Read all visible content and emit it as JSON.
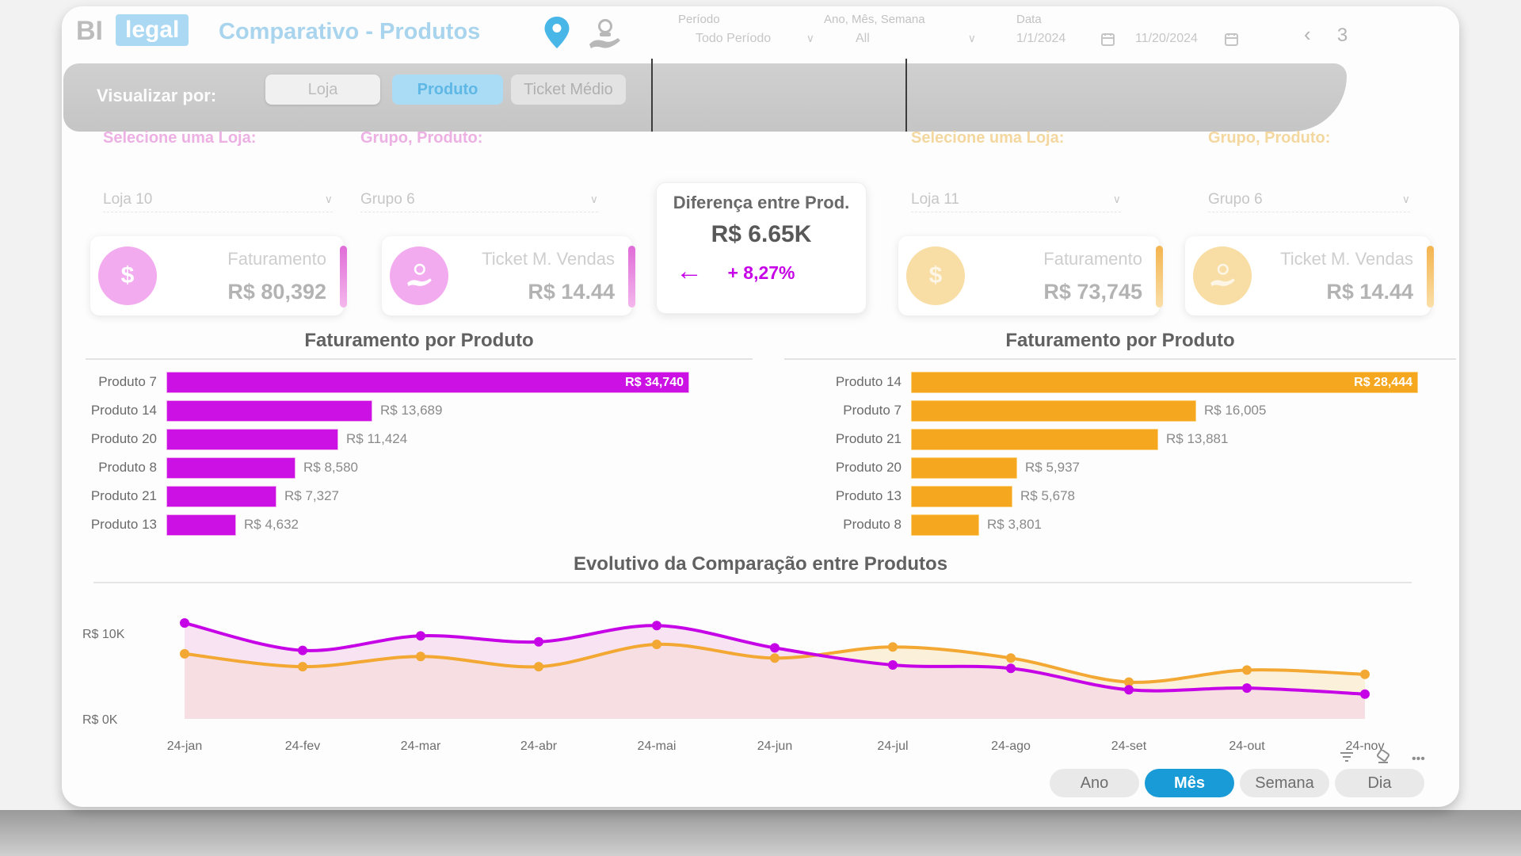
{
  "header": {
    "logo_bi": "BI",
    "logo_legal": "legal",
    "title": "Comparativo - Produtos",
    "filters": {
      "periodo": {
        "label": "Período",
        "value": "Todo Período"
      },
      "ano_mes_semana": {
        "label": "Ano, Mês, Semana",
        "value": "All"
      },
      "data": {
        "label": "Data",
        "start": "1/1/2024",
        "end": "11/20/2024"
      }
    },
    "pagination": {
      "prev": "‹",
      "page": "3"
    }
  },
  "toolbar": {
    "label": "Visualizar por:",
    "buttons": [
      {
        "label": "Loja",
        "active": false
      },
      {
        "label": "Produto",
        "active": true
      },
      {
        "label": "Ticket Médio",
        "active": false
      }
    ]
  },
  "left_panel": {
    "store_label": "Selecione uma Loja:",
    "store_value": "Loja 10",
    "group_label": "Grupo, Produto:",
    "group_value": "Grupo 6",
    "kpi_faturamento": {
      "label": "Faturamento",
      "value": "R$ 80,392"
    },
    "kpi_ticket": {
      "label": "Ticket M. Vendas",
      "value": "R$ 14.44"
    }
  },
  "right_panel": {
    "store_label": "Selecione uma Loja:",
    "store_value": "Loja 11",
    "group_label": "Grupo, Produto:",
    "group_value": "Grupo 6",
    "kpi_faturamento": {
      "label": "Faturamento",
      "value": "R$ 73,745"
    },
    "kpi_ticket": {
      "label": "Ticket M. Vendas",
      "value": "R$ 14.44"
    }
  },
  "diff_card": {
    "title": "Diferença entre Prod.",
    "value": "R$ 6.65K",
    "arrow": "←",
    "percent": "+ 8,27%"
  },
  "chart_data": [
    {
      "type": "bar",
      "orientation": "horizontal",
      "title": "Faturamento por Produto",
      "bar_color": "#cb11e3",
      "bar_border": "#f0a6ec",
      "categories": [
        "Produto 7",
        "Produto 14",
        "Produto 20",
        "Produto 8",
        "Produto 21",
        "Produto 13"
      ],
      "values": [
        34740,
        13689,
        11424,
        8580,
        7327,
        4632
      ],
      "value_labels": [
        "R$ 34,740",
        "R$ 13,689",
        "R$ 11,424",
        "R$ 8,580",
        "R$ 7,327",
        "R$ 4,632"
      ],
      "label_inside": [
        true,
        false,
        false,
        false,
        false,
        false
      ]
    },
    {
      "type": "bar",
      "orientation": "horizontal",
      "title": "Faturamento por Produto",
      "bar_color": "#f5a71f",
      "bar_border": "#fbd07c",
      "categories": [
        "Produto 14",
        "Produto 7",
        "Produto 21",
        "Produto 20",
        "Produto 13",
        "Produto 8"
      ],
      "values": [
        28444,
        16005,
        13881,
        5937,
        5678,
        3801
      ],
      "value_labels": [
        "R$ 28,444",
        "R$ 16,005",
        "R$ 13,881",
        "R$ 5,937",
        "R$ 5,678",
        "R$ 3,801"
      ],
      "label_inside": [
        true,
        false,
        false,
        false,
        false,
        false
      ]
    },
    {
      "type": "line",
      "title": "Evolutivo da Comparação entre Produtos",
      "x": [
        "24-jan",
        "24-fev",
        "24-mar",
        "24-abr",
        "24-mai",
        "24-jun",
        "24-jul",
        "24-ago",
        "24-set",
        "24-out",
        "24-nov"
      ],
      "y_axis": {
        "ticks": [
          {
            "label": "R$ 10K",
            "k": 10
          },
          {
            "label": "R$ 0K",
            "k": 0
          }
        ],
        "max_k": 12.5
      },
      "series": [
        {
          "color_name": "orange",
          "color": "#f2a832",
          "fill": "rgba(250,233,200,0.65)",
          "values_k": [
            7.6,
            6.1,
            7.3,
            6.1,
            8.7,
            7.1,
            8.4,
            7.1,
            4.3,
            5.7,
            5.2
          ]
        },
        {
          "color_name": "magenta",
          "color": "#c603e6",
          "fill": "rgba(244,210,234,0.6)",
          "values_k": [
            11.2,
            8.0,
            9.7,
            9.0,
            10.9,
            8.3,
            6.3,
            5.9,
            3.4,
            3.6,
            2.9
          ]
        }
      ],
      "grid": false,
      "legend": "none"
    }
  ],
  "footer": {
    "icons": {
      "filter": "filter",
      "eraser": "eraser",
      "more": "•••"
    },
    "period_buttons": [
      {
        "label": "Ano",
        "active": false
      },
      {
        "label": "Mês",
        "active": true
      },
      {
        "label": "Semana",
        "active": false
      },
      {
        "label": "Dia",
        "active": false
      }
    ]
  }
}
